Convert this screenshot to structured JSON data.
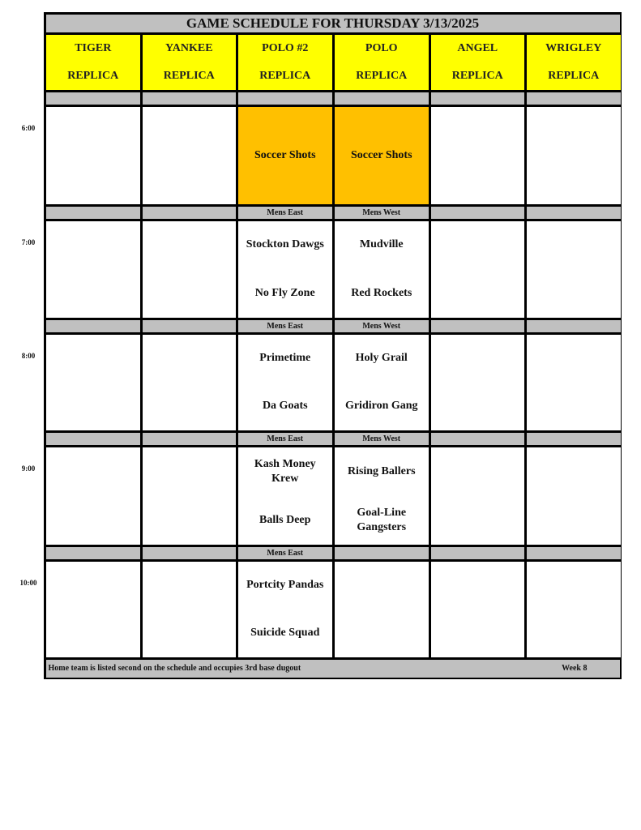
{
  "title": "GAME SCHEDULE FOR THURSDAY 3/13/2025",
  "columns": [
    {
      "line1": "TIGER",
      "line2": "REPLICA"
    },
    {
      "line1": "YANKEE",
      "line2": "REPLICA"
    },
    {
      "line1": "POLO #2",
      "line2": "REPLICA"
    },
    {
      "line1": "POLO",
      "line2": "REPLICA"
    },
    {
      "line1": "ANGEL",
      "line2": "REPLICA"
    },
    {
      "line1": "WRIGLEY",
      "line2": "REPLICA"
    }
  ],
  "slots": [
    {
      "time": "6:00",
      "divisions": [
        "",
        "",
        "",
        "",
        "",
        ""
      ],
      "cells": [
        [],
        [],
        [
          "Soccer Shots"
        ],
        [
          "Soccer Shots"
        ],
        [],
        []
      ],
      "highlight": [
        false,
        false,
        true,
        true,
        false,
        false
      ]
    },
    {
      "time": "7:00",
      "divisions": [
        "",
        "",
        "Mens East",
        "Mens West",
        "",
        ""
      ],
      "cells": [
        [],
        [],
        [
          "Stockton Dawgs",
          "No Fly Zone"
        ],
        [
          "Mudville",
          "Red Rockets"
        ],
        [],
        []
      ],
      "highlight": [
        false,
        false,
        false,
        false,
        false,
        false
      ]
    },
    {
      "time": "8:00",
      "divisions": [
        "",
        "",
        "Mens East",
        "Mens West",
        "",
        ""
      ],
      "cells": [
        [],
        [],
        [
          "Primetime",
          "Da Goats"
        ],
        [
          "Holy Grail",
          "Gridiron Gang"
        ],
        [],
        []
      ],
      "highlight": [
        false,
        false,
        false,
        false,
        false,
        false
      ]
    },
    {
      "time": "9:00",
      "divisions": [
        "",
        "",
        "Mens East",
        "Mens West",
        "",
        ""
      ],
      "cells": [
        [],
        [],
        [
          "Kash Money Krew",
          "Balls Deep"
        ],
        [
          "Rising Ballers",
          "Goal-Line Gangsters"
        ],
        [],
        []
      ],
      "highlight": [
        false,
        false,
        false,
        false,
        false,
        false
      ]
    },
    {
      "time": "10:00",
      "divisions": [
        "",
        "",
        "Mens East",
        "",
        "",
        ""
      ],
      "cells": [
        [],
        [],
        [
          "Portcity Pandas",
          "Suicide Squad"
        ],
        [],
        [],
        []
      ],
      "highlight": [
        false,
        false,
        false,
        false,
        false,
        false
      ]
    }
  ],
  "footer": {
    "note": "Home team is listed second on the schedule and occupies 3rd base dugout",
    "week": "Week 8"
  },
  "colors": {
    "header": "#ffff00",
    "highlight": "#ffc000",
    "divider": "#c0c0c0"
  }
}
